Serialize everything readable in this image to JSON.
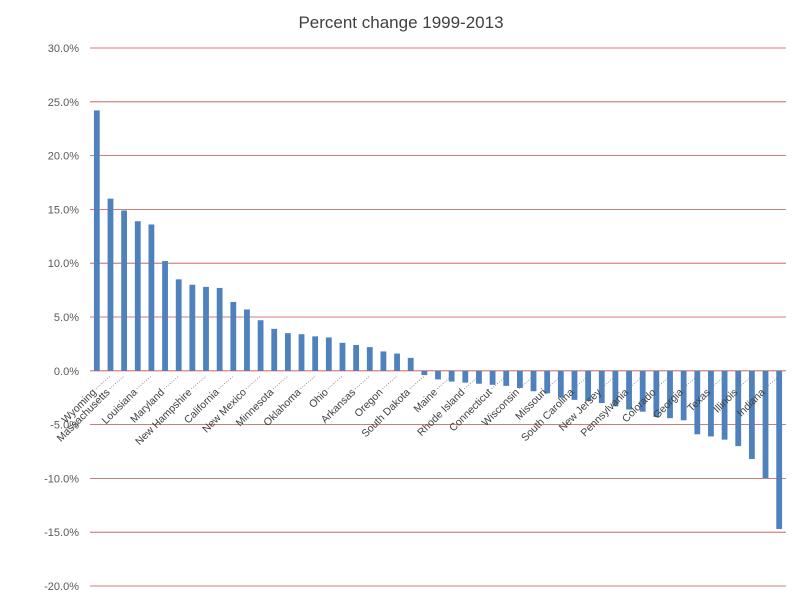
{
  "chart_data": {
    "type": "bar",
    "title": "Percent change 1999-2013",
    "xlabel": "",
    "ylabel": "",
    "ylim": [
      -20,
      30
    ],
    "yticks": [
      "30.0%",
      "25.0%",
      "20.0%",
      "15.0%",
      "10.0%",
      "5.0%",
      "0.0%",
      "-5.0%",
      "-10.0%",
      "-15.0%",
      "-20.0%"
    ],
    "grid": true,
    "legend": "none",
    "bar_color": "#4f81bd",
    "grid_color": "#c0504d",
    "values": [
      24.2,
      16.0,
      14.9,
      13.9,
      13.6,
      10.2,
      8.5,
      8.0,
      7.8,
      7.7,
      6.4,
      5.7,
      4.7,
      3.9,
      3.5,
      3.4,
      3.2,
      3.1,
      2.6,
      2.4,
      2.2,
      1.8,
      1.6,
      1.2,
      -0.4,
      -0.8,
      -1.0,
      -1.1,
      -1.2,
      -1.3,
      -1.4,
      -1.6,
      -1.9,
      -2.1,
      -2.5,
      -2.7,
      -2.8,
      -3.0,
      -3.3,
      -3.6,
      -3.8,
      -4.3,
      -4.4,
      -4.6,
      -5.9,
      -6.1,
      -6.4,
      -7.0,
      -8.2,
      -10.0,
      -14.7
    ],
    "tick_labels": [
      {
        "index": 0,
        "label": "Wyoming"
      },
      {
        "index": 1,
        "label": "Massachusetts"
      },
      {
        "index": 3,
        "label": "Louisiana"
      },
      {
        "index": 5,
        "label": "Maryland"
      },
      {
        "index": 7,
        "label": "New Hampshire"
      },
      {
        "index": 9,
        "label": "California"
      },
      {
        "index": 11,
        "label": "New Mexico"
      },
      {
        "index": 13,
        "label": "Minnesota"
      },
      {
        "index": 15,
        "label": "Oklahoma"
      },
      {
        "index": 17,
        "label": "Ohio"
      },
      {
        "index": 19,
        "label": "Arkansas"
      },
      {
        "index": 21,
        "label": "Oregon"
      },
      {
        "index": 23,
        "label": "South Dakota"
      },
      {
        "index": 25,
        "label": "Maine"
      },
      {
        "index": 27,
        "label": "Rhode Island"
      },
      {
        "index": 29,
        "label": "Connecticut"
      },
      {
        "index": 31,
        "label": "Wisconsin"
      },
      {
        "index": 33,
        "label": "Missouri"
      },
      {
        "index": 35,
        "label": "South Carolina"
      },
      {
        "index": 37,
        "label": "New Jersey"
      },
      {
        "index": 39,
        "label": "Pennsylvania"
      },
      {
        "index": 41,
        "label": "Colorado"
      },
      {
        "index": 43,
        "label": "Georgia"
      },
      {
        "index": 45,
        "label": "Texas"
      },
      {
        "index": 47,
        "label": "Illinois"
      },
      {
        "index": 49,
        "label": "Indiana"
      }
    ]
  }
}
